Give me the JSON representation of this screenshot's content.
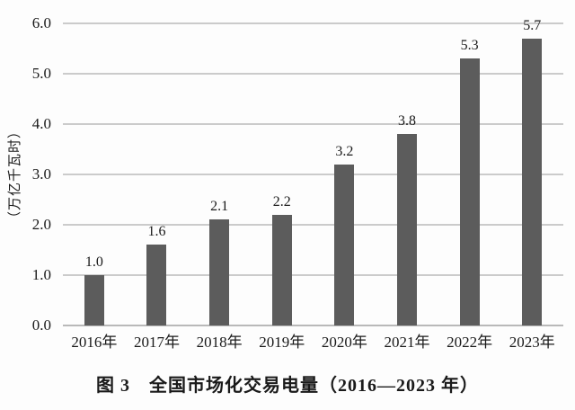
{
  "figure": {
    "caption": "图 3　全国市场化交易电量（2016—2023 年）"
  },
  "chart_data": {
    "type": "bar",
    "title": "图 3　全国市场化交易电量（2016—2023 年）",
    "ylabel": "（万亿千瓦时）",
    "xlabel": "",
    "categories": [
      "2016年",
      "2017年",
      "2018年",
      "2019年",
      "2020年",
      "2021年",
      "2022年",
      "2023年"
    ],
    "values": [
      1.0,
      1.6,
      2.1,
      2.2,
      3.2,
      3.8,
      5.3,
      5.7
    ],
    "data_labels": [
      "1.0",
      "1.6",
      "2.1",
      "2.2",
      "3.2",
      "3.8",
      "5.3",
      "5.7"
    ],
    "ylim": [
      0,
      6.0
    ],
    "yticks": [
      "0.0",
      "1.0",
      "2.0",
      "3.0",
      "4.0",
      "5.0",
      "6.0"
    ],
    "grid": "horizontal",
    "legend_position": "none",
    "bar_color": "#5c5c5c",
    "grid_color": "#cbcbcb",
    "baseline_color": "#b9b9b9",
    "text_color": "#1a1a1a",
    "background_color": "#fdfdfd"
  }
}
